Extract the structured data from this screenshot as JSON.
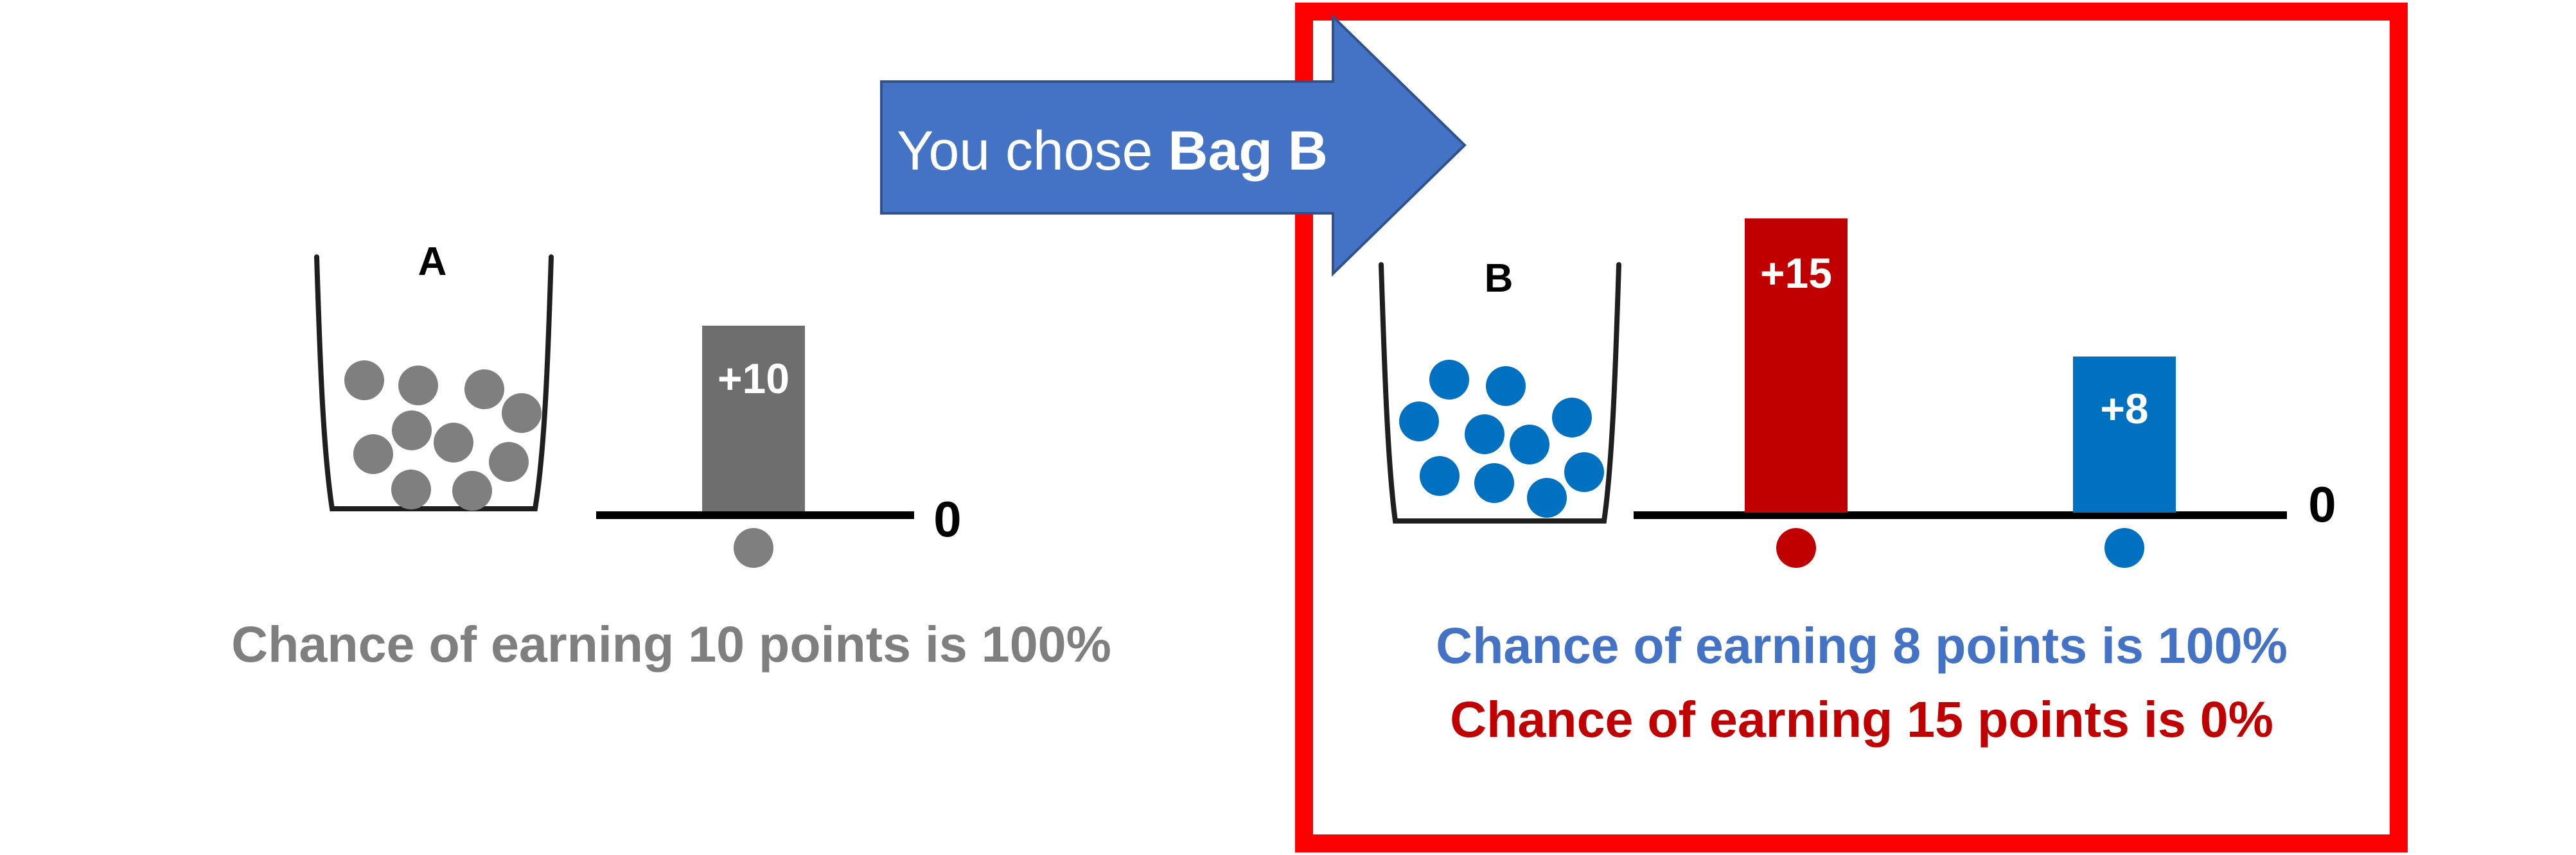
{
  "arrow": {
    "prefix": "You chose ",
    "bold": "Bag B",
    "fill": "#4472C4",
    "stroke": "#2F528F",
    "text_color": "#FFFFFF"
  },
  "selection_frame": {
    "color": "#FF0000"
  },
  "bag_a": {
    "label": "A",
    "ball_count": 10,
    "ball_color": "#7F7F7F",
    "outcomes": [
      {
        "label": "+10",
        "value": 10,
        "bar_color": "#6E6E6E",
        "dot_color": "#7F7F7F"
      }
    ],
    "baseline_label": "0",
    "caption": "Chance of earning 10 points is 100%",
    "caption_color": "#7F7F7F"
  },
  "bag_b": {
    "label": "B",
    "ball_count": 10,
    "ball_color": "#0070C0",
    "outcomes": [
      {
        "label": "+15",
        "value": 15,
        "bar_color": "#C00000",
        "dot_color": "#C00000"
      },
      {
        "label": "+8",
        "value": 8,
        "bar_color": "#0070C0",
        "dot_color": "#0070C0"
      }
    ],
    "baseline_label": "0",
    "captions": [
      {
        "text": "Chance of earning 8 points is 100%",
        "color": "#4472C4"
      },
      {
        "text": "Chance of earning 15 points is 0%",
        "color": "#C00000"
      }
    ]
  },
  "text_color": "#000000"
}
